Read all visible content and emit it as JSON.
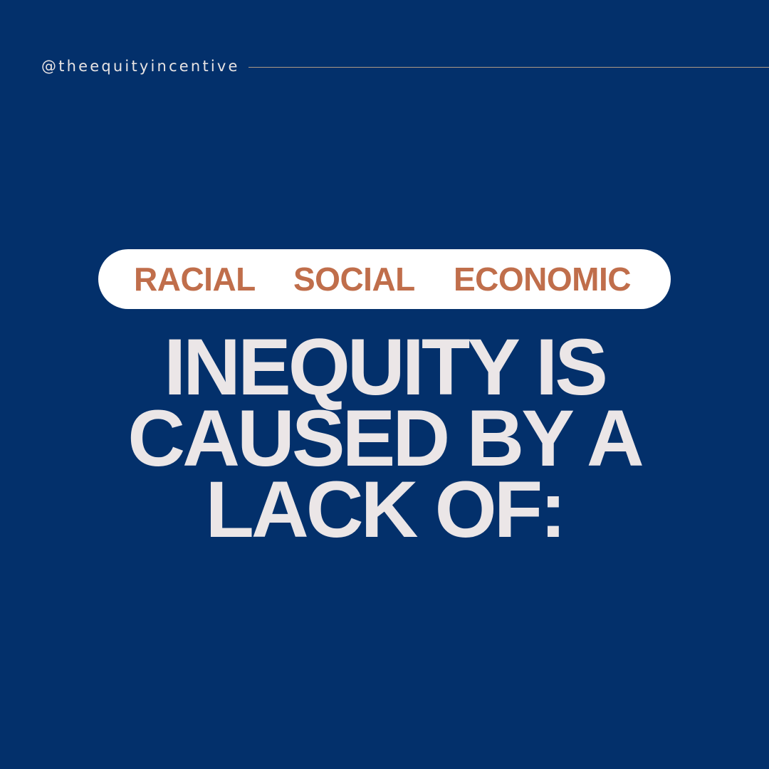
{
  "handle": "@theequityincentive",
  "pill": {
    "words": [
      "RACIAL",
      "SOCIAL",
      "ECONOMIC"
    ]
  },
  "headline": {
    "lines": [
      "INEQUITY IS",
      "CAUSED BY A",
      "LACK OF:"
    ]
  },
  "colors": {
    "background": "#03306b",
    "pill_background": "#ffffff",
    "accent_text": "#c06e4b",
    "headline_text": "#ebe6e7",
    "rule": "#b09a86"
  }
}
